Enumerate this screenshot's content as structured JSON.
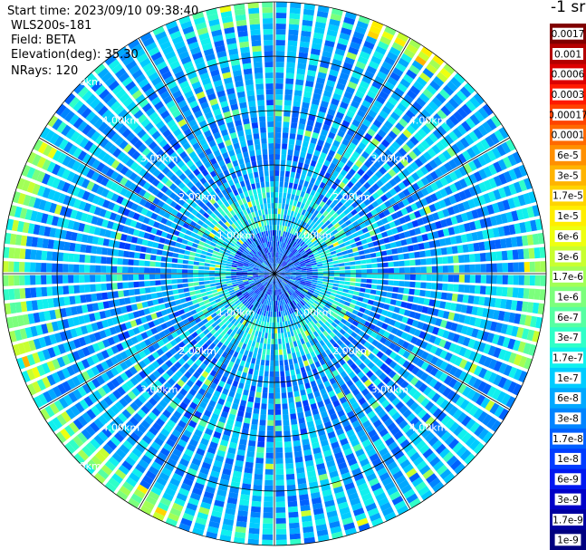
{
  "info": {
    "start_time": "Start time: 2023/09/10 09:38:40",
    "instrument": "WLS200s-181",
    "field": "Field: BETA",
    "elevation": "Elevation(deg): 35.30",
    "nrays": "NRays: 120"
  },
  "colorbar": {
    "title": "-1 sr",
    "labels": [
      "0.0017",
      "0.001",
      "0.0006",
      "0.0003",
      "0.00017",
      "0.0001",
      "6e-5",
      "3e-5",
      "1.7e-5",
      "1e-5",
      "6e-6",
      "3e-6",
      "1.7e-6",
      "1e-6",
      "6e-7",
      "3e-7",
      "1.7e-7",
      "1e-7",
      "6e-8",
      "3e-8",
      "1.7e-8",
      "1e-8",
      "6e-9",
      "3e-9",
      "1.7e-9",
      "1e-9"
    ],
    "colors": [
      "#800000",
      "#b40000",
      "#dc0000",
      "#ff1a00",
      "#ff4400",
      "#ff6a00",
      "#ff9000",
      "#ffb400",
      "#ffd400",
      "#ffee00",
      "#eeff10",
      "#c8ff30",
      "#a2ff56",
      "#7cff7c",
      "#56ffa2",
      "#30ffc8",
      "#10f0ee",
      "#00ccff",
      "#00a8ff",
      "#0084ff",
      "#0060ff",
      "#003cff",
      "#0018f0",
      "#0000c8",
      "#0000a0",
      "#000080"
    ]
  },
  "chart_data": {
    "type": "heatmap",
    "projection": "polar-ppi",
    "nrays": 120,
    "elevation_deg": 35.3,
    "range_rings_km": [
      1,
      2,
      3,
      4,
      5
    ],
    "ring_labels": [
      "1.00km",
      "2.00km",
      "3.00km",
      "4.00km",
      "5.00km"
    ],
    "max_range_km": 5.0,
    "spokes_deg": [
      0,
      30,
      60,
      90,
      120,
      150,
      180,
      210,
      240,
      270,
      300,
      330
    ],
    "field": "BETA",
    "units": "-1 sr",
    "color_scale": "log",
    "value_range": [
      1e-09,
      0.0017
    ]
  }
}
